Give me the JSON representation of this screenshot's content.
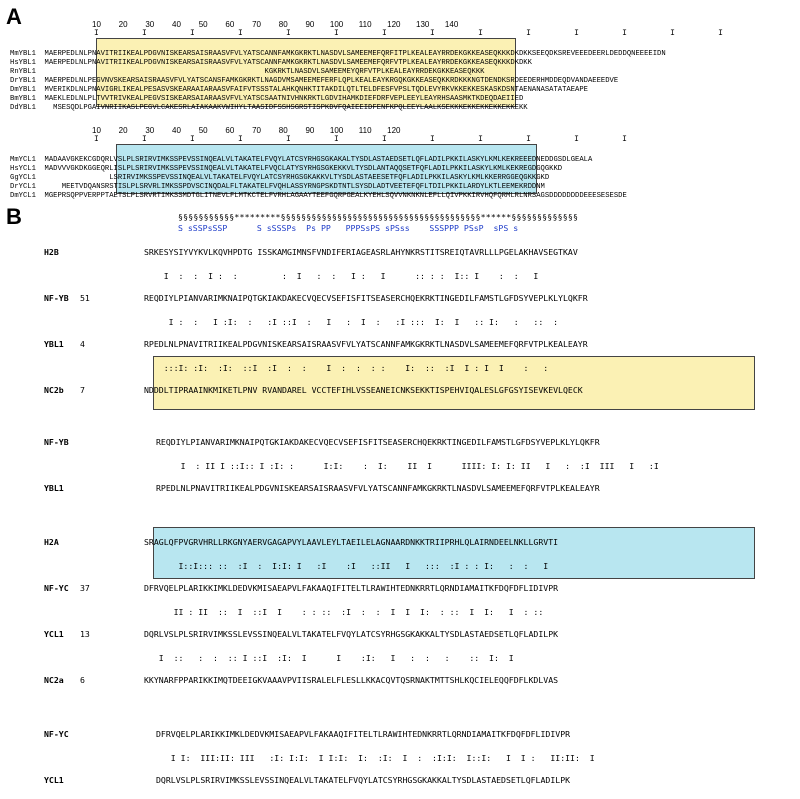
{
  "panels": {
    "a": "A",
    "b": "B"
  },
  "ruler_a1": "10        20        30        40        50        60        70        80        90       100       110       120       130       140",
  "ruler_a2": "10        20        30        40        50        60        70        80        90       100       110       120",
  "ybl1_rows": [
    {
      "name": "MmYBL1",
      "seq": "MAERPEDLNLPNAVITRIIKEALPDGVNISKEARSAISRAASVFVLYATSCANNFAMKGKRKTLNASDVLSAMEEMEFQRFITPLKEALEAYRRDEKGKKEASEQKKKDKDKKSEEQDKSREVEEEDEERLDEDDQNEEEEIDN"
    },
    {
      "name": "HsYBL1",
      "seq": "MAERPEDLNLPNAVITRIIKEALPDGVNISKEARSAISRAASVFVLYATSCANNFAMKGKRKTLNASDVLSAMEEMEFQRFVTPLKEALEAYRRDEKGKKEASEQKKKDKDKK"
    },
    {
      "name": "RnYBL1",
      "seq": "                                                   KGKRKTLNASDVLSAMEEMEYQRFVTPLKEALEAYRRDEKGKKEASEQKKK"
    },
    {
      "name": "DrYBL1",
      "seq": "MAERPEDLNLPEGVNVSKEARSAISRAASVFVLYATSCANSFAMKGKRKTLNAGDVMSAMEEMEFERFLQPLKEALEAYKRGQKGKKEASEQKKRDKKKNGTDENDKSRDEEDERHMDDEQDVANDAEEEDVE"
    },
    {
      "name": "DmYBL1",
      "seq": "MVERIKDLNLPNAVIGRLIKEALPESASVSKEARAAIARAASVFAIFVTSSSTALAHKQNHKTITAKDILQTLTELDFESFVPSLTQDLEVYRKVKKEKKESKASKDSNTAENANASATATAEAPE"
    },
    {
      "name": "BmYBL1",
      "seq": "MAEKLEDLNLPLTVVTRIVKEALPEGVSISKEARSAIARAASVFVLYATSCSAATNIVHNKRKTLGDVIHAMKDIEFDRFVEPLEEYLEAYRHSAASMKTKDEQDAEIIED"
    },
    {
      "name": "DdYBL1",
      "seq": "  MSESQDLPGAIVNRIIKASLPEGVLCAKESRLAIAKAAKVWIHYLTAASIDFSSHSGRSTISPKDVFQAIEEIDFENFKPQLEEYLAALKSEKKKEKKEKKEKKEKKEKK"
    }
  ],
  "ycl1_rows": [
    {
      "name": "MmYCL1",
      "seq": "MADAAVGKEKCGDQRLVSLPLSRIRVIMKSSPEVSSINQEALVLTAKATELFVQYLATCSYRHGSGKAKALTYSDLASTAEDSETLQFLADILPKKILASKYLKMLKEKREEEDNEDDGSDLGEALA"
    },
    {
      "name": "HsYCL1",
      "seq": "MADVVVGKDKGGEQRLISLPLSRIRVIMKSSPEVSSINQEALVLTAKATELFVQCLATYSYRHGSGKEKKVLTYSDLANTAQQSETFQFLADILPKKILASKYLKMLKEKREGDGQGKKD"
    },
    {
      "name": "GgYCL1",
      "seq": "               LSRIRVIMKSSPEVSSINQEALVLTAKATELFVQYLATCSYRHGSGKAKKVLTYSDLASTAEESETFQFLADILPKKILASKYLKMLKKERRGGEQGKKGKD"
    },
    {
      "name": "DrYCL1",
      "seq": "    MEETVDQANSRSTISLPLSRVRLIMKSSPDVSCINQDALFLTAKATELFVQHLASSYRNGPSKDTNTLSYSDLADTVEETEFQFLTDILPKKILARDYLKTLEEMEKRDDNM"
    },
    {
      "name": "DmYCL1",
      "seq": "MGEPRSQPPVERPPTAETSLPLSRVRTIMKSSMDTGLITNEVLFLMTKCTELFVRHLAGAAYTEEFGQRPGEALKYEHLSQVVNKNKNLEFLLQIVPKKIRVHQFQRMLRLNRSAGSDDDDDDDDEEESESESDE"
    }
  ],
  "b_sections": [
    {
      "star": "§§§§§§§§§§§*********§§§§§§§§§§§§§§§§§§§§§§§§§§§§§§§§§§§§§§§******§§§§§§§§§§§§§",
      "sline": "S sSSPsSSP      S sSSSPs  Ps PP   PPPSsPS sPSss    SSSPPP PSsP  sPS s"
    },
    {
      "name": "H2B",
      "num": "",
      "seq": "SRKESYSIYVYKVLKQVHPDTG ISSKAMGIMNSFVNDIFERIAGEASRLAHYNKRSTITSREIQTAVRLLLPGELAKHAVSEGTKAV"
    },
    {
      "name": "NF-YB",
      "num": "51",
      "seq": "REQDIYLPIANVARIMKNAIPQTGKIAKDAKECVQECVSEFISFITSEASERCHQEKRKTINGEDILFAMSTLGFDSYVEPLKLYLQKFR"
    },
    {
      "name": "YBL1",
      "num": "4",
      "seq": "RPEDLNLPNAVITRIIKEALPDGVNISKEARSAISRAASVFVLYATSCANNFAMKGKRKTLNASDVLSAMEEMEFQRFVTPLKEALEAYR"
    },
    {
      "name": "NC2b",
      "num": "7",
      "seq": "NDDDLTIPRAAINKMIKETLPNV RVANDAREL VCCTEFIHLVSSEANEICNKSEKKTISPEHVIQALESLGFGSYISEVKEVLQECK"
    },
    {
      "name": "NF-YB",
      "num": "",
      "seq": "REQDIYLPIANVARIMKNAIPQTGKIAKDAKECVQECVSEFISFITSEASERCHQEKRKTINGEDILFAMSTLGFDSYVEPLKLYLQKFR"
    },
    {
      "name": "YBL1",
      "num": "",
      "seq": "RPEDLNLPNAVITRIIKEALPDGVNISKEARSAISRAASVFVLYATSCANNFAMKGKRKTLNASDVLSAMEEMEFQRFVTPLKEALEAYR"
    },
    {
      "name": "H2A",
      "num": "",
      "seq": "SRAGLQFPVGRVHRLLRKGNYAERVGAGAPVYLAAVLEYLTAEILELAGNAARDNKKTRIIPRHLQLAIRNDEELNKLLGRVTI"
    },
    {
      "name": "NF-YC",
      "num": "37",
      "seq": "DFRVQELPLARIKKIMKLDEDVKMISAEAPVLFAKAAQIFITELTLRAWIHTEDNKRRTLQRNDIAMAITKFDQFDFLIDIVPR"
    },
    {
      "name": "YCL1",
      "num": "13",
      "seq": "DQRLVSLPLSRIRVIMKSSLEVSSINQEALVLTAKATELFVQYLATCSYRHGSGKAKKALTYSDLASTAEDSETLQFLADILPK"
    },
    {
      "name": "NC2a",
      "num": "6",
      "seq": "KKYNARFPPARIKKIMQTDEEIGKVAAAVPVIISRALELFLESLLKKACQVTQSRNAKTMTTSHLKQCIELEQQFDFLKDLVAS"
    },
    {
      "name": "NF-YC",
      "num": "",
      "seq": "DFRVQELPLARIKKIMKLDEDVKMISAEAPVLFAKAAQIFITELTLRAWIHTEDNKRRTLQRNDIAMAITKFDQFDFLIDIVPR"
    },
    {
      "name": "YCL1",
      "num": "",
      "seq": "DQRLVSLPLSRIRVIMKSSLEVSSINQEALVLTAKATELFVQYLATCSYRHGSGKAKKALTYSDLASTAEDSETLQFLADILPK"
    }
  ],
  "match_lines": [
    "    I  :  :  I :  :         :  I   :  :   I :   I      :: : :  I:: I    :  :   I   ",
    "     I :  :   I :I:  :   :I ::I  :   I   :  I  :   :I :::  I:  I   :: I:   :   ::  :",
    "    :::I: :I:  :I:  ::I  :I  :  :    I  :  :  : :    I:  ::  :I  I : I  I    :   :",
    "     I  : II I ::I:: I :I: :      I:I:    :  I:    II  I      IIII: I: I: II   I   :  :I  III   I   :I",
    "       I::I::: ::  :I  :  I:I: I   :I    :I   ::II   I   :::  :I : : I:   :  :   I   ",
    "      II : II  ::  I  ::I  I    : : ::  :I  :  :  I  I  I:  : ::  I  I:   I  : ::   ",
    "   I  ::   :  :  :: I ::I  :I:  I      I    :I:   I   :  :   :    ::  I:  I   ",
    "   I I:  III:II: III   :I: I:I:  I I:I:  I:  :I:  I  :  :I:I:  I::I:   I  I :   II:II:  I"
  ]
}
